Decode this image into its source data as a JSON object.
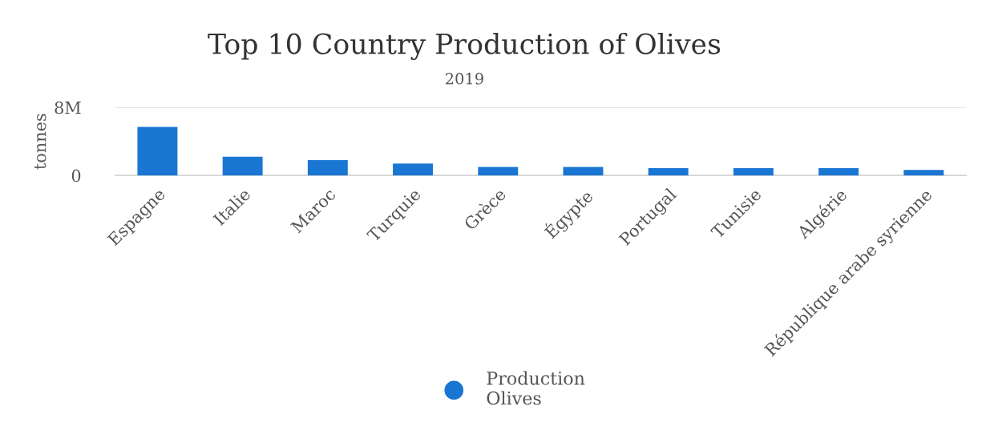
{
  "chart_data": {
    "type": "bar",
    "title": "Top 10 Country Production of Olives",
    "subtitle": "2019",
    "ylabel": "tonnes",
    "categories": [
      "Espagne",
      "Italie",
      "Maroc",
      "Turquie",
      "Grèce",
      "Égypte",
      "Portugal",
      "Tunisie",
      "Algérie",
      "République arabe syrienne"
    ],
    "series": [
      {
        "name": "Production Olives",
        "color": "#1976d2",
        "values": [
          5700000,
          2200000,
          1800000,
          1400000,
          1000000,
          1000000,
          850000,
          850000,
          850000,
          650000
        ]
      }
    ],
    "ylim": [
      0,
      8000000
    ],
    "yticks": [
      0,
      {
        "value": 8000000,
        "label": "8M"
      }
    ],
    "grid": "y",
    "legend": "bottom"
  }
}
